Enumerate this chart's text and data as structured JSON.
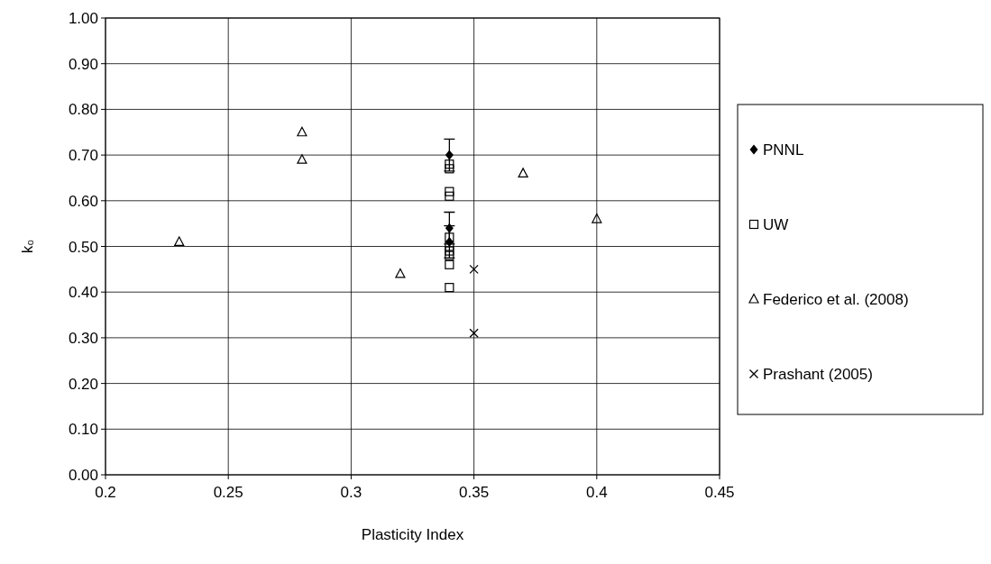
{
  "chart_data": {
    "type": "scatter",
    "xlabel": "Plasticity Index",
    "ylabel": "k₀",
    "xlim": [
      0.2,
      0.45
    ],
    "xticks": [
      {
        "value": 0.2,
        "label": "0.2"
      },
      0.25,
      {
        "value": 0.3,
        "label": "0.3"
      },
      0.35,
      {
        "value": 0.4,
        "label": "0.4"
      },
      0.45
    ],
    "ylim": [
      0,
      1
    ],
    "yticks": [
      {
        "value": 0,
        "label": "0.00"
      },
      {
        "value": 0.1,
        "label": "0.10"
      },
      {
        "value": 0.2,
        "label": "0.20"
      },
      {
        "value": 0.3,
        "label": "0.30"
      },
      {
        "value": 0.4,
        "label": "0.40"
      },
      {
        "value": 0.5,
        "label": "0.50"
      },
      {
        "value": 0.6,
        "label": "0.60"
      },
      {
        "value": 0.7,
        "label": "0.70"
      },
      {
        "value": 0.8,
        "label": "0.80"
      },
      {
        "value": 0.9,
        "label": "0.90"
      },
      {
        "value": 1,
        "label": "1.00"
      }
    ],
    "grid": true,
    "legend": "right",
    "series": [
      {
        "name": "PNNL",
        "color": "#000000",
        "marker": "diamond",
        "x": [
          0.34,
          0.34,
          0.34
        ],
        "values": [
          0.7,
          0.54,
          0.51
        ],
        "errors": [
          0.035,
          0.035,
          0.035
        ]
      },
      {
        "name": "UW",
        "color": "#000000",
        "marker": "square",
        "x": [
          0.34,
          0.34,
          0.34,
          0.34,
          0.34,
          0.34,
          0.34,
          0.34,
          0.34,
          0.34
        ],
        "values": [
          0.68,
          0.67,
          0.62,
          0.61,
          0.52,
          0.5,
          0.49,
          0.48,
          0.46,
          0.41
        ]
      },
      {
        "name": "Federico et al. (2008)",
        "color": "#000000",
        "marker": "triangle",
        "x": [
          0.23,
          0.28,
          0.28,
          0.32,
          0.37,
          0.4
        ],
        "values": [
          0.51,
          0.75,
          0.69,
          0.44,
          0.66,
          0.56
        ]
      },
      {
        "name": "Prashant (2005)",
        "color": "#000000",
        "marker": "cross",
        "x": [
          0.35,
          0.35
        ],
        "values": [
          0.45,
          0.31
        ]
      }
    ]
  }
}
